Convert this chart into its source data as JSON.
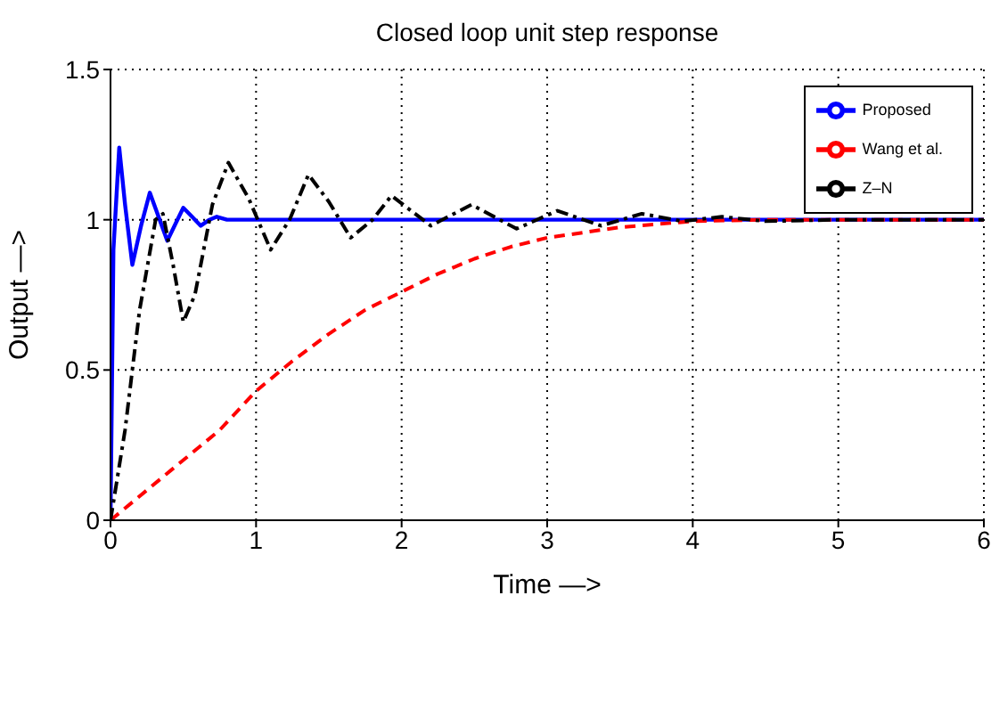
{
  "chart_data": {
    "type": "line",
    "title": "Closed loop unit step response",
    "xlabel": "Time —>",
    "ylabel": "Output —>",
    "xlim": [
      0,
      6
    ],
    "xticks": [
      0,
      1,
      2,
      3,
      4,
      5,
      6
    ],
    "ylim": [
      0,
      1.5
    ],
    "yticks": [
      0,
      0.5,
      1,
      1.5
    ],
    "grid": true,
    "legend": "top right",
    "marker": "none",
    "series": [
      {
        "name": "Proposed",
        "color": "#0000ff",
        "line_style": "solid",
        "x": [
          0,
          0.02,
          0.06,
          0.1,
          0.15,
          0.21,
          0.27,
          0.33,
          0.39,
          0.45,
          0.5,
          0.56,
          0.62,
          0.68,
          0.73,
          0.8,
          0.9,
          1,
          2,
          3,
          4,
          5,
          6
        ],
        "values": [
          0,
          0.9,
          1.24,
          1.05,
          0.85,
          0.98,
          1.09,
          1.01,
          0.93,
          0.99,
          1.04,
          1.01,
          0.98,
          1.0,
          1.01,
          1.0,
          1.0,
          1.0,
          1.0,
          1.0,
          1.0,
          1.0,
          1.0
        ]
      },
      {
        "name": "Wang et al.",
        "color": "#ff0000",
        "line_style": "dashed",
        "x": [
          0,
          0.25,
          0.5,
          0.75,
          1,
          1.25,
          1.5,
          1.75,
          2,
          2.25,
          2.5,
          2.75,
          3,
          3.5,
          4,
          4.5,
          5,
          6
        ],
        "values": [
          0,
          0.1,
          0.2,
          0.3,
          0.43,
          0.53,
          0.62,
          0.7,
          0.76,
          0.82,
          0.87,
          0.91,
          0.94,
          0.975,
          0.995,
          1.0,
          1.0,
          1.0
        ]
      },
      {
        "name": "Z–N",
        "color": "#000000",
        "line_style": "dashdot",
        "x": [
          0,
          0.1,
          0.2,
          0.31,
          0.36,
          0.43,
          0.5,
          0.58,
          0.7,
          0.81,
          0.95,
          1.1,
          1.23,
          1.36,
          1.5,
          1.65,
          1.8,
          1.93,
          2.2,
          2.48,
          2.79,
          3.07,
          3.37,
          3.65,
          3.93,
          4.2,
          4.5,
          5,
          6
        ],
        "values": [
          0,
          0.3,
          0.7,
          1.0,
          1.02,
          0.85,
          0.66,
          0.75,
          1.05,
          1.19,
          1.07,
          0.9,
          1.0,
          1.15,
          1.06,
          0.94,
          1.0,
          1.08,
          0.98,
          1.05,
          0.97,
          1.03,
          0.98,
          1.02,
          0.995,
          1.01,
          0.995,
          1.0,
          1.0
        ]
      }
    ]
  }
}
